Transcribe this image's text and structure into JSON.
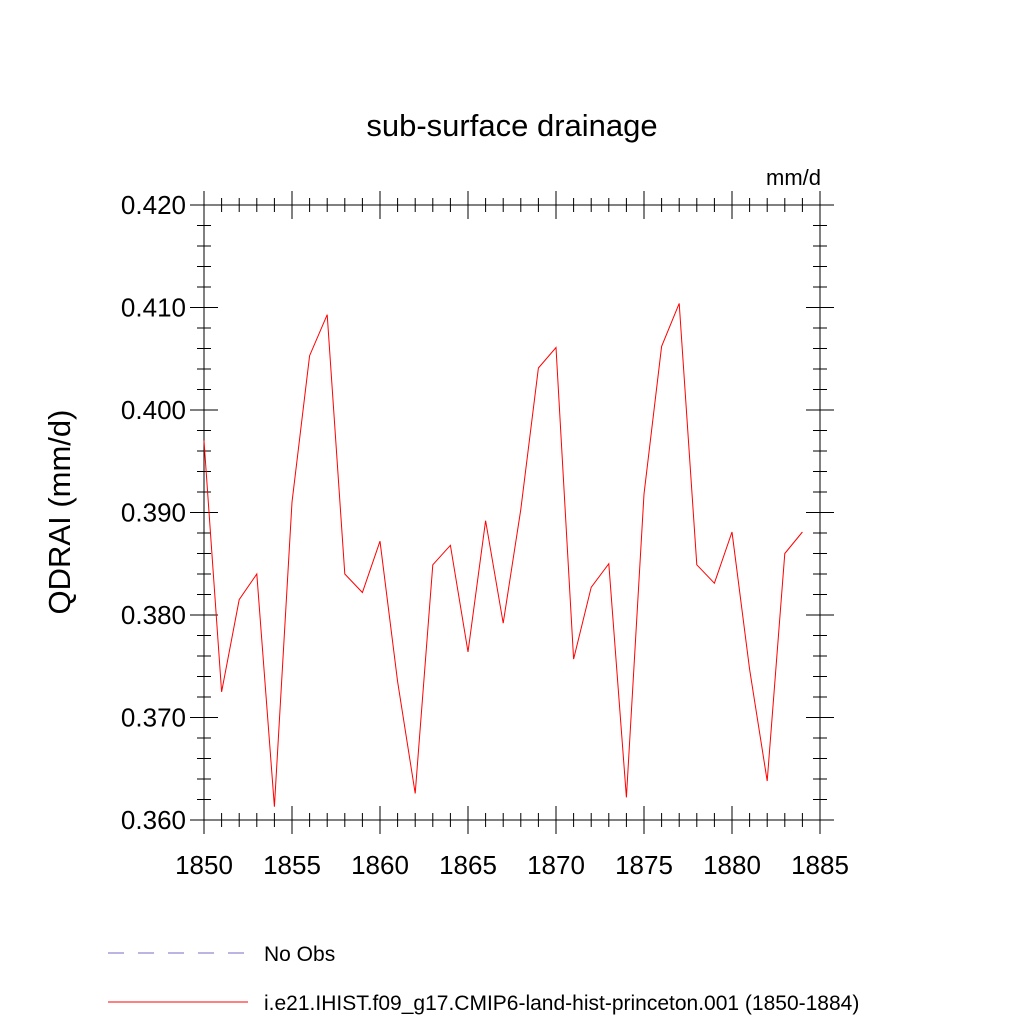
{
  "chart_data": {
    "type": "line",
    "title": "sub-surface drainage",
    "units": "mm/d",
    "ylabel": "QDRAI  (mm/d)",
    "xlabel": "",
    "xlim": [
      1850,
      1885
    ],
    "ylim": [
      0.36,
      0.42
    ],
    "x_ticks": [
      1850,
      1855,
      1860,
      1865,
      1870,
      1875,
      1880,
      1885
    ],
    "x_tick_labels": [
      "1850",
      "1855",
      "1860",
      "1865",
      "1870",
      "1875",
      "1880",
      "1885"
    ],
    "y_ticks": [
      0.36,
      0.37,
      0.38,
      0.39,
      0.4,
      0.41,
      0.42
    ],
    "y_tick_labels": [
      "0.360",
      "0.370",
      "0.380",
      "0.390",
      "0.400",
      "0.410",
      "0.420"
    ],
    "grid": false,
    "legend_position": "bottom",
    "series": [
      {
        "name": "No Obs",
        "color": "#7b68c8",
        "dash": "dashed",
        "x": [],
        "y": []
      },
      {
        "name": "i.e21.IHIST.f09_g17.CMIP6-land-hist-princeton.001 (1850-1884)",
        "color": "#ff0000",
        "dash": "solid",
        "x": [
          1850,
          1851,
          1852,
          1853,
          1854,
          1855,
          1856,
          1857,
          1858,
          1859,
          1860,
          1861,
          1862,
          1863,
          1864,
          1865,
          1866,
          1867,
          1868,
          1869,
          1870,
          1871,
          1872,
          1873,
          1874,
          1875,
          1876,
          1877,
          1878,
          1879,
          1880,
          1881,
          1882,
          1883,
          1884
        ],
        "y": [
          0.397,
          0.3725,
          0.3815,
          0.384,
          0.3613,
          0.391,
          0.4053,
          0.4093,
          0.384,
          0.3822,
          0.3872,
          0.3735,
          0.3626,
          0.3849,
          0.3868,
          0.3764,
          0.3892,
          0.3792,
          0.3903,
          0.4041,
          0.4061,
          0.3757,
          0.3827,
          0.385,
          0.3622,
          0.3918,
          0.4062,
          0.4104,
          0.3849,
          0.3831,
          0.3881,
          0.3747,
          0.3638,
          0.386,
          0.3881
        ]
      }
    ]
  }
}
